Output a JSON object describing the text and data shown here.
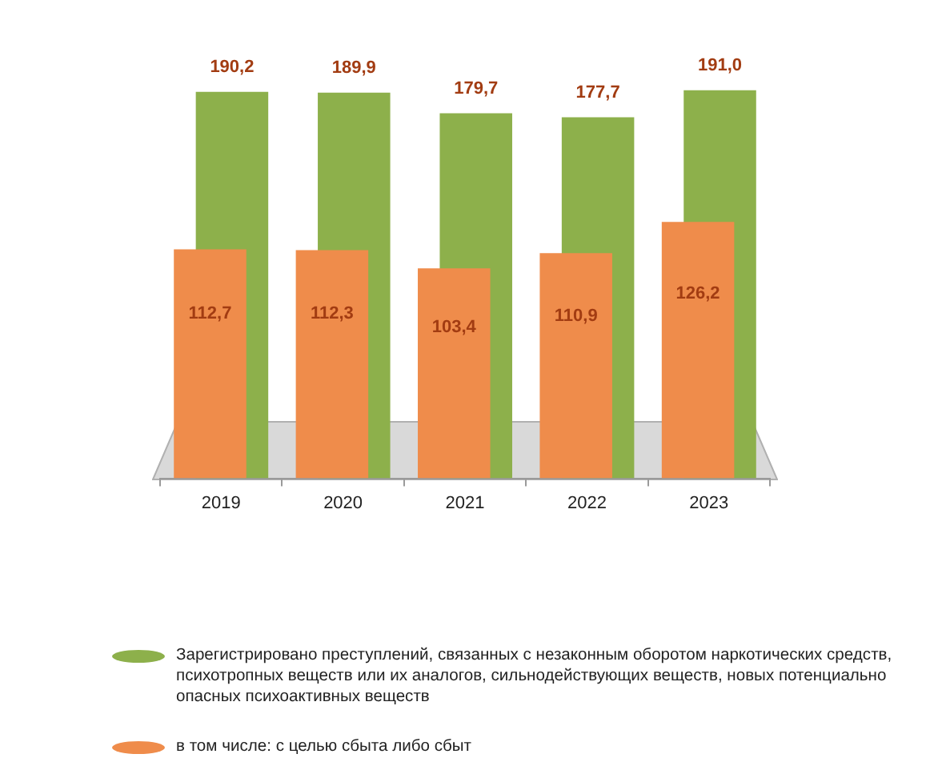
{
  "chart_data": {
    "type": "bar",
    "categories": [
      "2019",
      "2020",
      "2021",
      "2022",
      "2023"
    ],
    "series": [
      {
        "name": "Зарегистрировано преступлений, связанных с незаконным оборотом наркотических средств, психотропных веществ или их аналогов, сильнодействующих веществ, новых потенциально опасных психоактивных веществ",
        "color": "#8db04b",
        "values": [
          190.2,
          189.9,
          179.7,
          177.7,
          191.0
        ],
        "value_labels": [
          "190,2",
          "189,9",
          "179,7",
          "177,7",
          "191,0"
        ]
      },
      {
        "name": "в том числе: с целью сбыта либо сбыт",
        "color": "#ef8c4b",
        "values": [
          112.7,
          112.3,
          103.4,
          110.9,
          126.2
        ],
        "value_labels": [
          "112,7",
          "112,3",
          "103,4",
          "110,9",
          "126,2"
        ]
      }
    ],
    "legend": "bottom",
    "tick_labels": "x"
  }
}
